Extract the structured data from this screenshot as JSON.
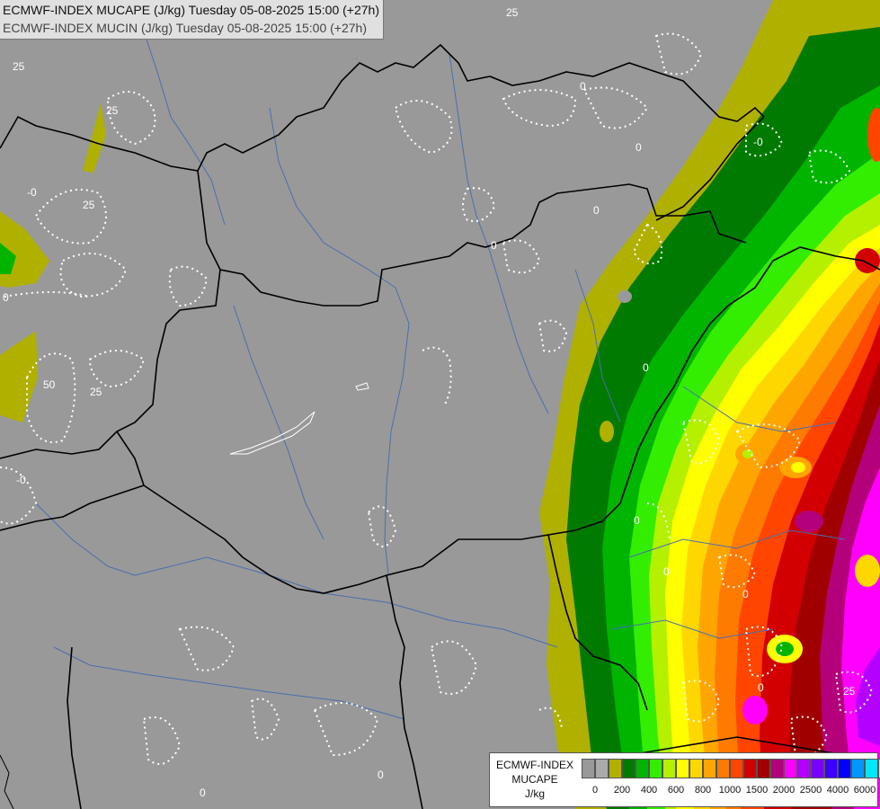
{
  "header": {
    "line1": "ECMWF-INDEX MUCAPE (J/kg) Tuesday 05-08-2025 15:00 (+27h)",
    "line2": "ECMWF-INDEX MUCIN (J/kg) Tuesday 05-08-2025 15:00 (+27h)"
  },
  "legend": {
    "title_line1": "ECMWF-INDEX",
    "title_line2": "MUCAPE",
    "title_line3": "J/kg",
    "colors": [
      "#999999",
      "#aaaaaa",
      "#b0b000",
      "#007a00",
      "#00b400",
      "#33ee00",
      "#b4f000",
      "#ffff00",
      "#ffd700",
      "#ffa500",
      "#ff7a00",
      "#ff4500",
      "#d20000",
      "#a00000",
      "#b4007a",
      "#ff00ff",
      "#b400ff",
      "#7a00ff",
      "#3c00ff",
      "#0000ff",
      "#0096ff",
      "#00e6ff",
      "#a0ffff",
      "#ffffff"
    ],
    "ticks": [
      "0",
      "200",
      "400",
      "600",
      "800",
      "1000",
      "1500",
      "2000",
      "2500",
      "4000",
      "6000"
    ]
  },
  "contour_labels": [
    "25",
    "25",
    "25",
    "25",
    "0",
    "0",
    "0",
    "0",
    "0",
    "0",
    "0",
    "0",
    "-0",
    "-0",
    "50",
    "25",
    "0",
    "0",
    "0",
    "25",
    "-0",
    "0"
  ],
  "map_colors": {
    "background": "#999999",
    "border": "#000000",
    "river": "#4a6fae",
    "contour": "#ffffff"
  }
}
